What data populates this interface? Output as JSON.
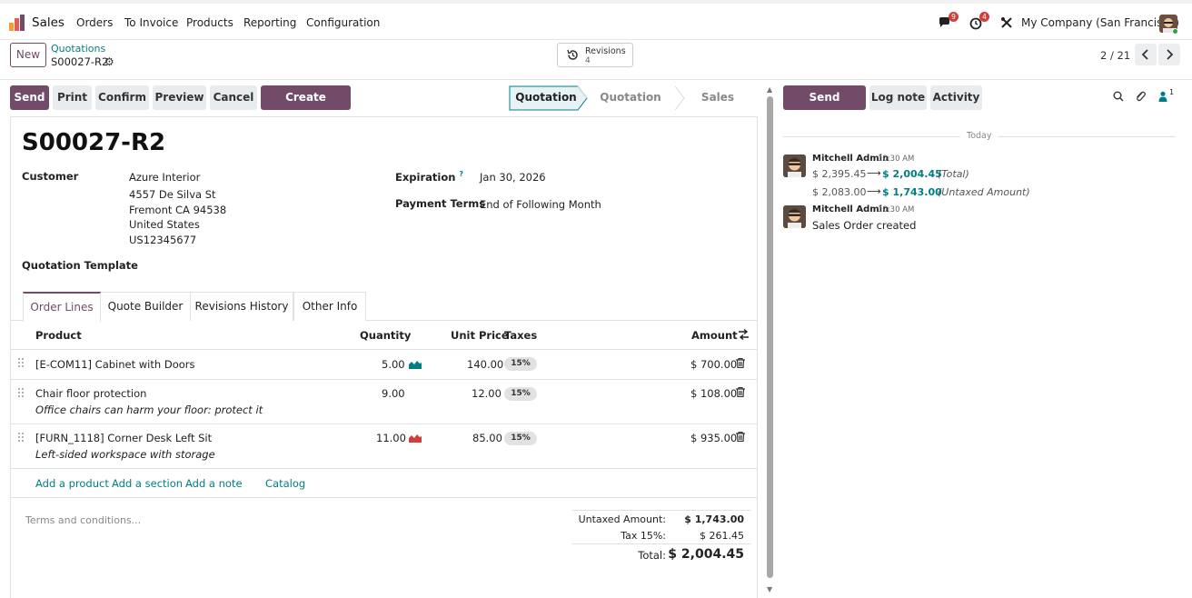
{
  "nav": {
    "app_name": "Sales",
    "menu": [
      "Orders",
      "To Invoice",
      "Products",
      "Reporting",
      "Configuration"
    ],
    "messages_count": "9",
    "activities_count": "4",
    "company": "My Company (San Francisco)"
  },
  "control": {
    "new_label": "New",
    "breadcrumb_parent": "Quotations",
    "breadcrumb_current": "S00027-R2",
    "revisions_label": "Revisions",
    "revisions_count": "4",
    "pager": "2 / 21"
  },
  "actions": [
    "Send",
    "Print",
    "Confirm",
    "Preview",
    "Cancel",
    "Create Revision"
  ],
  "statusbar": [
    "Quotation",
    "Quotation Sent",
    "Sales Order"
  ],
  "form": {
    "title": "S00027-R2",
    "customer_label": "Customer",
    "customer_lines": [
      "Azure Interior",
      "4557 De Silva St",
      "Fremont CA 94538",
      "United States",
      "US12345677"
    ],
    "expiration_label": "Expiration",
    "expiration_help": "?",
    "expiration_value": "Jan 30, 2026",
    "payment_terms_label": "Payment Terms",
    "payment_terms_value": "End of Following Month",
    "template_label": "Quotation Template"
  },
  "tabs": [
    "Order Lines",
    "Quote Builder",
    "Revisions History",
    "Other Info"
  ],
  "table": {
    "headers": {
      "product": "Product",
      "quantity": "Quantity",
      "unit_price": "Unit Price",
      "taxes": "Taxes",
      "amount": "Amount"
    },
    "rows": [
      {
        "product": "[E-COM11] Cabinet with Doors",
        "description": "",
        "quantity": "5.00",
        "unit_price": "140.00",
        "tax": "15%",
        "amount": "$ 700.00",
        "forecast": "ok"
      },
      {
        "product": "Chair floor protection",
        "description": "Office chairs can harm your floor: protect it",
        "quantity": "9.00",
        "unit_price": "12.00",
        "tax": "15%",
        "amount": "$ 108.00",
        "forecast": ""
      },
      {
        "product": "[FURN_1118] Corner Desk Left Sit",
        "description": "Left-sided workspace with storage",
        "quantity": "11.00",
        "unit_price": "85.00",
        "tax": "15%",
        "amount": "$ 935.00",
        "forecast": "warning"
      }
    ],
    "add_links": [
      "Add a product",
      "Add a section",
      "Add a note",
      "Catalog"
    ]
  },
  "terms_placeholder": "Terms and conditions...",
  "totals": {
    "untaxed_label": "Untaxed Amount:",
    "untaxed_value": "$ 1,743.00",
    "tax_label": "Tax 15%:",
    "tax_value": "$ 261.45",
    "total_label": "Total:",
    "total_value": "$ 2,004.45"
  },
  "chatter": {
    "send_message": "Send message",
    "log_note": "Log note",
    "activity": "Activity",
    "followers_count": "1",
    "today": "Today",
    "messages": [
      {
        "author": "Mitchell Admin",
        "time": "10:30 AM",
        "tracking": [
          {
            "old": "$ 2,395.45",
            "new": "$ 2,004.45",
            "field": "(Total)"
          },
          {
            "old": "$ 2,083.00",
            "new": "$ 1,743.00",
            "field": "(Untaxed Amount)"
          }
        ],
        "body": ""
      },
      {
        "author": "Mitchell Admin",
        "time": "10:30 AM",
        "tracking": [],
        "body": "Sales Order created"
      }
    ]
  },
  "colors": {
    "primary": "#714b67",
    "link": "#017e84",
    "badge": "#d23f3a",
    "forecast_ok": "#017e84",
    "forecast_warning": "#d23f3a"
  }
}
